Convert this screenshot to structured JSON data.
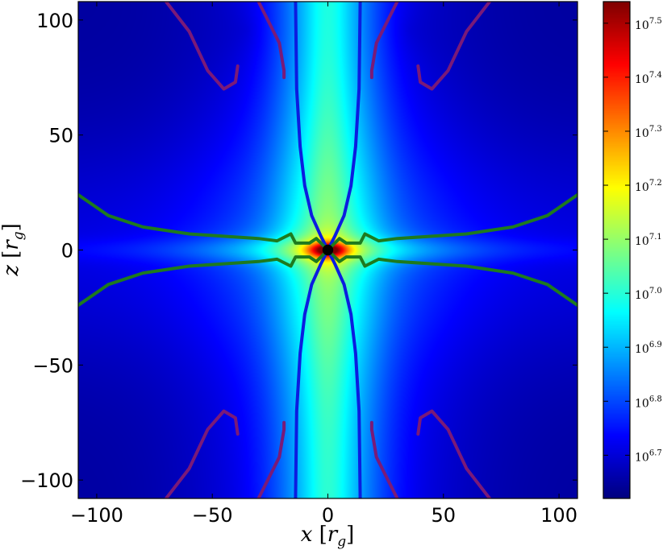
{
  "chart_data": {
    "type": "heatmap",
    "title": "",
    "xlabel": "x [r_g]",
    "ylabel": "z [r_g]",
    "xlabel_parts": {
      "var": "x",
      "open": " [",
      "r": "r",
      "sub": "g",
      "close": "]"
    },
    "ylabel_parts": {
      "var": "z",
      "open": " [",
      "r": "r",
      "sub": "g",
      "close": "]"
    },
    "xlim": [
      -108,
      108
    ],
    "ylim": [
      -108,
      108
    ],
    "x_ticks": [
      -100,
      -50,
      0,
      50,
      100
    ],
    "y_ticks": [
      -100,
      -50,
      0,
      50,
      100
    ],
    "x_tick_labels": [
      "−100",
      "−50",
      "0",
      "50",
      "100"
    ],
    "y_tick_labels": [
      "−100",
      "−50",
      "0",
      "50",
      "100"
    ],
    "colorbar": {
      "colormap": "jet",
      "scale": "log",
      "range_log10": [
        6.62,
        7.54
      ],
      "ticks_log10": [
        6.7,
        6.8,
        6.9,
        7.0,
        7.1,
        7.2,
        7.3,
        7.4,
        7.5
      ],
      "tick_labels": [
        {
          "base": "10",
          "exp": "6.7"
        },
        {
          "base": "10",
          "exp": "6.8"
        },
        {
          "base": "10",
          "exp": "6.9"
        },
        {
          "base": "10",
          "exp": "7.0"
        },
        {
          "base": "10",
          "exp": "7.1"
        },
        {
          "base": "10",
          "exp": "7.2"
        },
        {
          "base": "10",
          "exp": "7.3"
        },
        {
          "base": "10",
          "exp": "7.4"
        },
        {
          "base": "10",
          "exp": "7.5"
        }
      ]
    },
    "field_features": {
      "background_log10": 6.65,
      "vertical_column": {
        "half_width": 22,
        "peak_log10": 7.05
      },
      "equatorial_disk": {
        "half_thickness": 5,
        "peak_log10": 7.18
      },
      "inner_core": {
        "radius": 8,
        "peak_log10": 7.54
      },
      "black_hole_marker": {
        "x": 0,
        "z": 0,
        "radius": 1.3,
        "color": "#000000"
      }
    },
    "contours": [
      {
        "color": "#0b1de0",
        "kind": "blue-funnel",
        "points": [
          [
            0,
            0
          ],
          [
            -3,
            6
          ],
          [
            -7,
            15
          ],
          [
            -10,
            28
          ],
          [
            -12,
            45
          ],
          [
            -13.5,
            70
          ],
          [
            -14,
            108
          ]
        ],
        "symmetry": "quad"
      },
      {
        "color": "#1e7a1e",
        "kind": "green-disk-boundary",
        "points": [
          [
            0,
            0
          ],
          [
            5,
            5
          ],
          [
            8,
            3
          ],
          [
            14,
            3
          ],
          [
            16,
            7
          ],
          [
            22,
            4
          ],
          [
            30,
            5
          ],
          [
            45,
            6
          ],
          [
            60,
            7
          ],
          [
            80,
            10
          ],
          [
            95,
            15
          ],
          [
            108,
            24
          ]
        ],
        "symmetry": "quad"
      },
      {
        "color": "#7a1a78",
        "kind": "purple-upper-inner",
        "points": [
          [
            -30,
            108
          ],
          [
            -25,
            98
          ],
          [
            -21,
            90
          ],
          [
            -19,
            78
          ],
          [
            -19,
            75
          ]
        ],
        "symmetry": "quad"
      },
      {
        "color": "#7a1a78",
        "kind": "purple-upper-outer",
        "points": [
          [
            -70,
            108
          ],
          [
            -60,
            95
          ],
          [
            -52,
            78
          ],
          [
            -45,
            70
          ],
          [
            -40,
            73
          ],
          [
            -39,
            80
          ]
        ],
        "symmetry": "quad"
      }
    ]
  }
}
